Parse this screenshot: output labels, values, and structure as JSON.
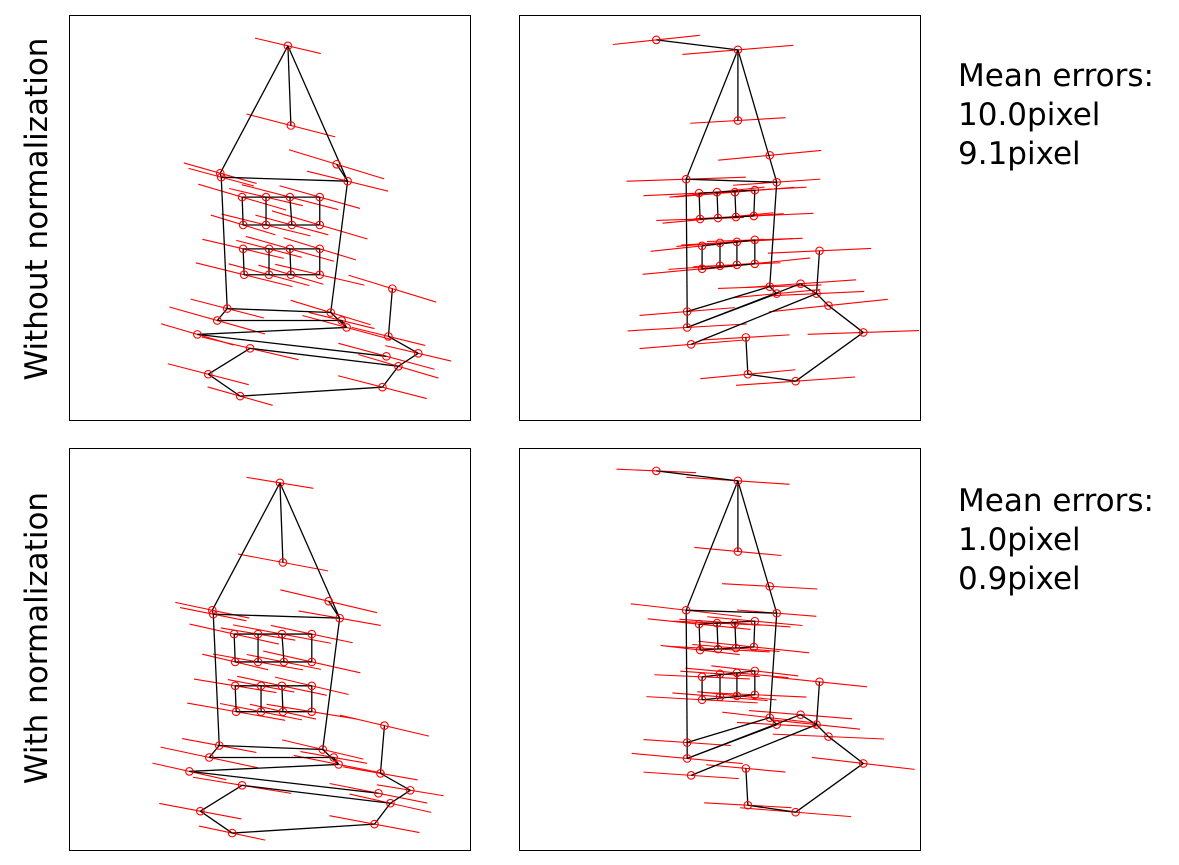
{
  "row_labels": {
    "top": "Without normalization",
    "bottom": "With normalization"
  },
  "errors_top": {
    "title": "Mean errors:",
    "line1": "10.0pixel",
    "line2": "9.1pixel"
  },
  "errors_bottom": {
    "title": "Mean errors:",
    "line1": "1.0pixel",
    "line2": "0.9pixel"
  },
  "colors": {
    "point": "#ff0000",
    "epipolar_line": "#ff0000",
    "wireframe": "#000000"
  }
}
